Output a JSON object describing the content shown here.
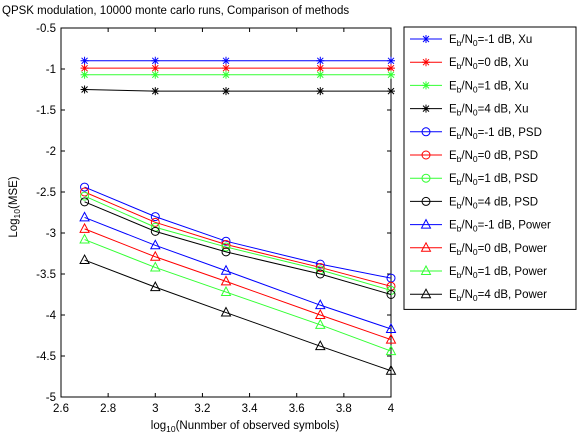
{
  "chart_data": {
    "type": "line",
    "title": "QPSK modulation, 10000 monte carlo runs, Comparison of methods",
    "xlabel": "log10(Nunmber of observed symbols)",
    "ylabel": "Log10(MSE)",
    "xlim": [
      2.6,
      4
    ],
    "ylim": [
      -5,
      -0.5
    ],
    "xticks": [
      2.6,
      2.8,
      3,
      3.2,
      3.4,
      3.6,
      3.8,
      4
    ],
    "xtick_labels": [
      "2.6",
      "2.8",
      "3",
      "3.2",
      "3.4",
      "3.6",
      "3.8",
      "4"
    ],
    "yticks": [
      -0.5,
      -1,
      -1.5,
      -2,
      -2.5,
      -3,
      -3.5,
      -4,
      -4.5,
      -5
    ],
    "ytick_labels": [
      "-0.5",
      "-1",
      "-1.5",
      "-2",
      "-2.5",
      "-3",
      "-3.5",
      "-4",
      "-4.5",
      "-5"
    ],
    "grid": false,
    "legend_position": "outside-right",
    "x": [
      2.7,
      3.0,
      3.3,
      3.7,
      4.0
    ],
    "series": [
      {
        "name": "Eb/N0=-1 dB, Xu",
        "snr": "=-1 dB, Xu",
        "color": "#0000ff",
        "marker": "star",
        "values": [
          -0.9,
          -0.9,
          -0.9,
          -0.9,
          -0.9
        ]
      },
      {
        "name": "Eb/N0=0 dB, Xu",
        "snr": "=0 dB, Xu",
        "color": "#ff0000",
        "marker": "star",
        "values": [
          -0.99,
          -0.99,
          -0.99,
          -0.99,
          -0.99
        ]
      },
      {
        "name": "Eb/N0=1 dB, Xu",
        "snr": "=1 dB, Xu",
        "color": "#33ff33",
        "marker": "star",
        "values": [
          -1.07,
          -1.07,
          -1.07,
          -1.07,
          -1.07
        ]
      },
      {
        "name": "Eb/N0=4 dB, Xu",
        "snr": "=4 dB, Xu",
        "color": "#000000",
        "marker": "star",
        "values": [
          -1.25,
          -1.27,
          -1.27,
          -1.27,
          -1.27
        ]
      },
      {
        "name": "Eb/N0=-1 dB, PSD",
        "snr": "=-1 dB, PSD",
        "color": "#0000ff",
        "marker": "circle",
        "values": [
          -2.44,
          -2.8,
          -3.1,
          -3.38,
          -3.55
        ]
      },
      {
        "name": "Eb/N0=0 dB, PSD",
        "snr": "=0 dB, PSD",
        "color": "#ff0000",
        "marker": "circle",
        "values": [
          -2.5,
          -2.87,
          -3.14,
          -3.42,
          -3.65
        ]
      },
      {
        "name": "Eb/N0=1 dB, PSD",
        "snr": "=1 dB, PSD",
        "color": "#33ff33",
        "marker": "circle",
        "values": [
          -2.55,
          -2.93,
          -3.17,
          -3.45,
          -3.7
        ]
      },
      {
        "name": "Eb/N0=4 dB, PSD",
        "snr": "=4 dB, PSD",
        "color": "#000000",
        "marker": "circle",
        "values": [
          -2.62,
          -2.98,
          -3.23,
          -3.5,
          -3.75
        ]
      },
      {
        "name": "Eb/N0=-1 dB, Power",
        "snr": "=-1 dB, Power",
        "color": "#0000ff",
        "marker": "triangle",
        "values": [
          -2.81,
          -3.15,
          -3.46,
          -3.88,
          -4.17
        ]
      },
      {
        "name": "Eb/N0=0 dB, Power",
        "snr": "=0 dB, Power",
        "color": "#ff0000",
        "marker": "triangle",
        "values": [
          -2.95,
          -3.29,
          -3.59,
          -4.0,
          -4.3
        ]
      },
      {
        "name": "Eb/N0=1 dB, Power",
        "snr": "=1 dB, Power",
        "color": "#33ff33",
        "marker": "triangle",
        "values": [
          -3.08,
          -3.42,
          -3.72,
          -4.12,
          -4.44
        ]
      },
      {
        "name": "Eb/N0=4 dB, Power",
        "snr": "=4 dB, Power",
        "color": "#000000",
        "marker": "triangle",
        "values": [
          -3.33,
          -3.66,
          -3.97,
          -4.38,
          -4.68
        ]
      }
    ]
  }
}
